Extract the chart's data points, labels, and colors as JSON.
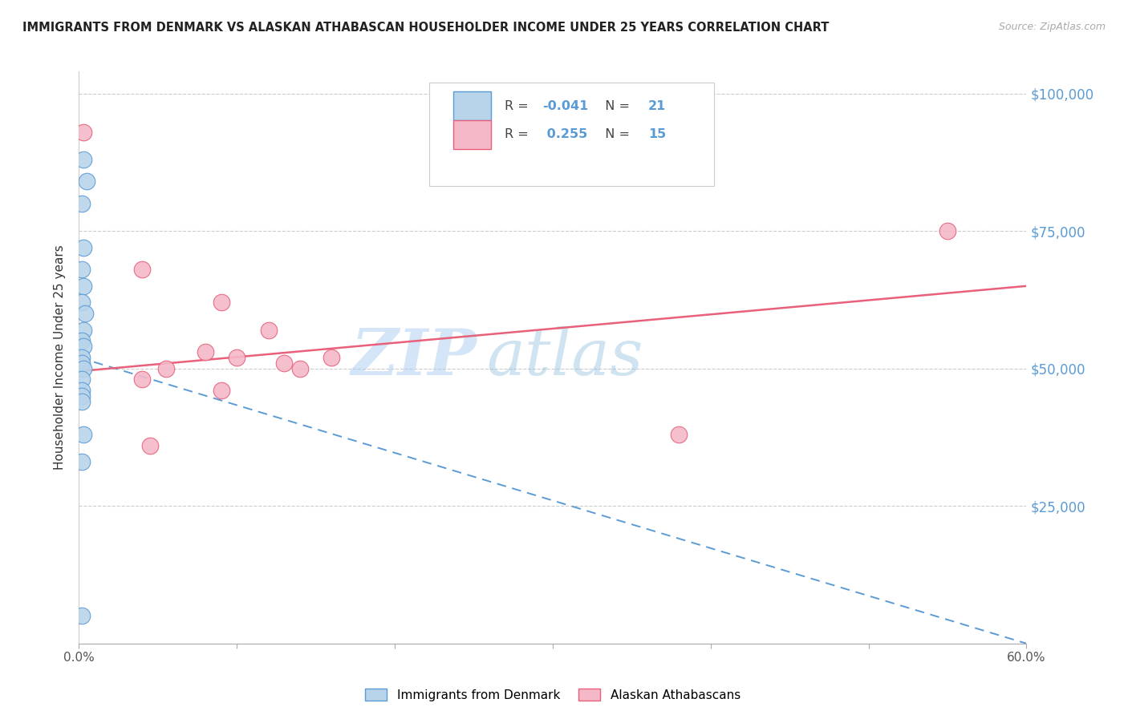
{
  "title": "IMMIGRANTS FROM DENMARK VS ALASKAN ATHABASCAN HOUSEHOLDER INCOME UNDER 25 YEARS CORRELATION CHART",
  "source": "Source: ZipAtlas.com",
  "ylabel": "Householder Income Under 25 years",
  "blue_label": "Immigrants from Denmark",
  "pink_label": "Alaskan Athabascans",
  "blue_R": "-0.041",
  "blue_N": "21",
  "pink_R": "0.255",
  "pink_N": "15",
  "blue_color": "#b8d4ea",
  "pink_color": "#f5b8c8",
  "blue_line_color": "#5b9bd5",
  "pink_line_color": "#e8607a",
  "blue_edge_color": "#5b9bd5",
  "pink_edge_color": "#e8607a",
  "watermark_zip": "ZIP",
  "watermark_atlas": "atlas",
  "ylim": [
    0,
    104000
  ],
  "xlim": [
    0.0,
    0.6
  ],
  "ylabel_vals": [
    25000,
    50000,
    75000,
    100000
  ],
  "ylabel_labels": [
    "$25,000",
    "$50,000",
    "$75,000",
    "$100,000"
  ],
  "grid_vals": [
    25000,
    50000,
    75000,
    100000
  ],
  "blue_scatter_x": [
    0.003,
    0.005,
    0.002,
    0.003,
    0.002,
    0.003,
    0.002,
    0.004,
    0.003,
    0.002,
    0.003,
    0.002,
    0.002,
    0.003,
    0.002,
    0.002,
    0.002,
    0.002,
    0.003,
    0.002,
    0.002
  ],
  "blue_scatter_y": [
    88000,
    84000,
    80000,
    72000,
    68000,
    65000,
    62000,
    60000,
    57000,
    55000,
    54000,
    52000,
    51000,
    50000,
    48000,
    46000,
    45000,
    44000,
    38000,
    33000,
    5000
  ],
  "pink_scatter_x": [
    0.003,
    0.04,
    0.08,
    0.09,
    0.1,
    0.12,
    0.13,
    0.14,
    0.16,
    0.04,
    0.09,
    0.38,
    0.55,
    0.045,
    0.055
  ],
  "pink_scatter_y": [
    93000,
    68000,
    53000,
    62000,
    52000,
    57000,
    51000,
    50000,
    52000,
    48000,
    46000,
    38000,
    75000,
    36000,
    50000
  ],
  "blue_regline_x": [
    0.0,
    0.6
  ],
  "blue_regline_y": [
    52000,
    0
  ],
  "pink_regline_x": [
    0.0,
    0.6
  ],
  "pink_regline_y": [
    49500,
    65000
  ]
}
